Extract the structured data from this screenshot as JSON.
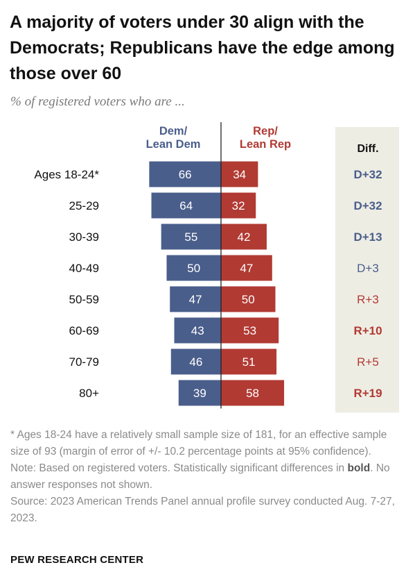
{
  "title": "A majority of voters under 30 align with the Democrats; Republicans have the edge among those over 60",
  "subtitle": "% of registered voters who are ...",
  "chart_data": {
    "type": "bar",
    "orientation": "horizontal-diverging",
    "categories": [
      "Ages 18-24*",
      "25-29",
      "30-39",
      "40-49",
      "50-59",
      "60-69",
      "70-79",
      "80+"
    ],
    "series": [
      {
        "name": "Dem/ Lean Dem",
        "label_lines": [
          "Dem/",
          "Lean Dem"
        ],
        "color": "#4a5e8b",
        "values": [
          66,
          64,
          55,
          50,
          47,
          43,
          46,
          39
        ]
      },
      {
        "name": "Rep/ Lean Rep",
        "label_lines": [
          "Rep/",
          "Lean Rep"
        ],
        "color": "#b13a33",
        "values": [
          34,
          32,
          42,
          47,
          50,
          53,
          51,
          58
        ]
      }
    ],
    "diff_header": "Diff.",
    "diff": [
      {
        "text": "D+32",
        "party": "D",
        "bold": true
      },
      {
        "text": "D+32",
        "party": "D",
        "bold": true
      },
      {
        "text": "D+13",
        "party": "D",
        "bold": true
      },
      {
        "text": "D+3",
        "party": "D",
        "bold": false
      },
      {
        "text": "R+3",
        "party": "R",
        "bold": false
      },
      {
        "text": "R+10",
        "party": "R",
        "bold": true
      },
      {
        "text": "R+5",
        "party": "R",
        "bold": false
      },
      {
        "text": "R+19",
        "party": "R",
        "bold": true
      }
    ],
    "diff_panel_color": "#eeede4",
    "dem_text_color": "#4a5e8b",
    "rep_text_color": "#b13a33"
  },
  "notes": {
    "footnote": "* Ages 18-24 have a relatively small sample size of 181, for an effective sample size of 93 (margin of error of +/- 10.2 percentage points at 95% confidence).",
    "note_before": "Note: Based on registered voters. Statistically significant differences in ",
    "note_bold": "bold",
    "note_after": ". No answer responses not shown.",
    "source": "Source: 2023 American Trends Panel annual profile survey conducted Aug. 7-27, 2023."
  },
  "brand": "PEW RESEARCH CENTER"
}
